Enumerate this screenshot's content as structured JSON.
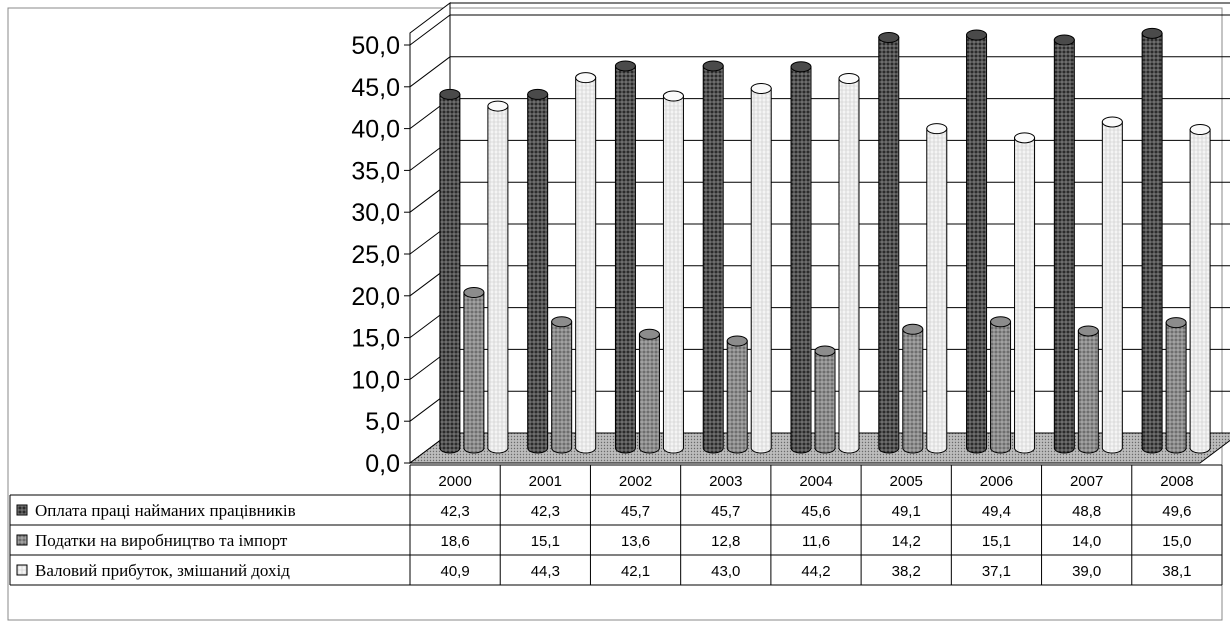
{
  "chart_data": {
    "type": "bar",
    "title": "",
    "xlabel": "",
    "ylabel": "",
    "ylim": [
      0,
      50
    ],
    "y_ticks": [
      "0,0",
      "5,0",
      "10,0",
      "15,0",
      "20,0",
      "25,0",
      "30,0",
      "35,0",
      "40,0",
      "45,0",
      "50,0"
    ],
    "grid": true,
    "legend_placement": "data-table-left",
    "categories": [
      "2000",
      "2001",
      "2002",
      "2003",
      "2004",
      "2005",
      "2006",
      "2007",
      "2008"
    ],
    "series": [
      {
        "name": "Оплата праці найманих працівників",
        "values": [
          42.3,
          42.3,
          45.7,
          45.7,
          45.6,
          49.1,
          49.4,
          48.8,
          49.6
        ],
        "labels": [
          "42,3",
          "42,3",
          "45,7",
          "45,7",
          "45,6",
          "49,1",
          "49,4",
          "48,8",
          "49,6"
        ],
        "color": "#3a3a3a"
      },
      {
        "name": "Податки на виробництво та імпорт",
        "values": [
          18.6,
          15.1,
          13.6,
          12.8,
          11.6,
          14.2,
          15.1,
          14.0,
          15.0
        ],
        "labels": [
          "18,6",
          "15,1",
          "13,6",
          "12,8",
          "11,6",
          "14,2",
          "15,1",
          "14,0",
          "15,0"
        ],
        "color": "#7a7a7a"
      },
      {
        "name": "Валовий прибуток, змішаний дохід",
        "values": [
          40.9,
          44.3,
          42.1,
          43.0,
          44.2,
          38.2,
          37.1,
          39.0,
          38.1
        ],
        "labels": [
          "40,9",
          "44,3",
          "42,1",
          "43,0",
          "44,2",
          "38,2",
          "37,1",
          "39,0",
          "38,1"
        ],
        "color": "#e0e0e0"
      }
    ]
  }
}
